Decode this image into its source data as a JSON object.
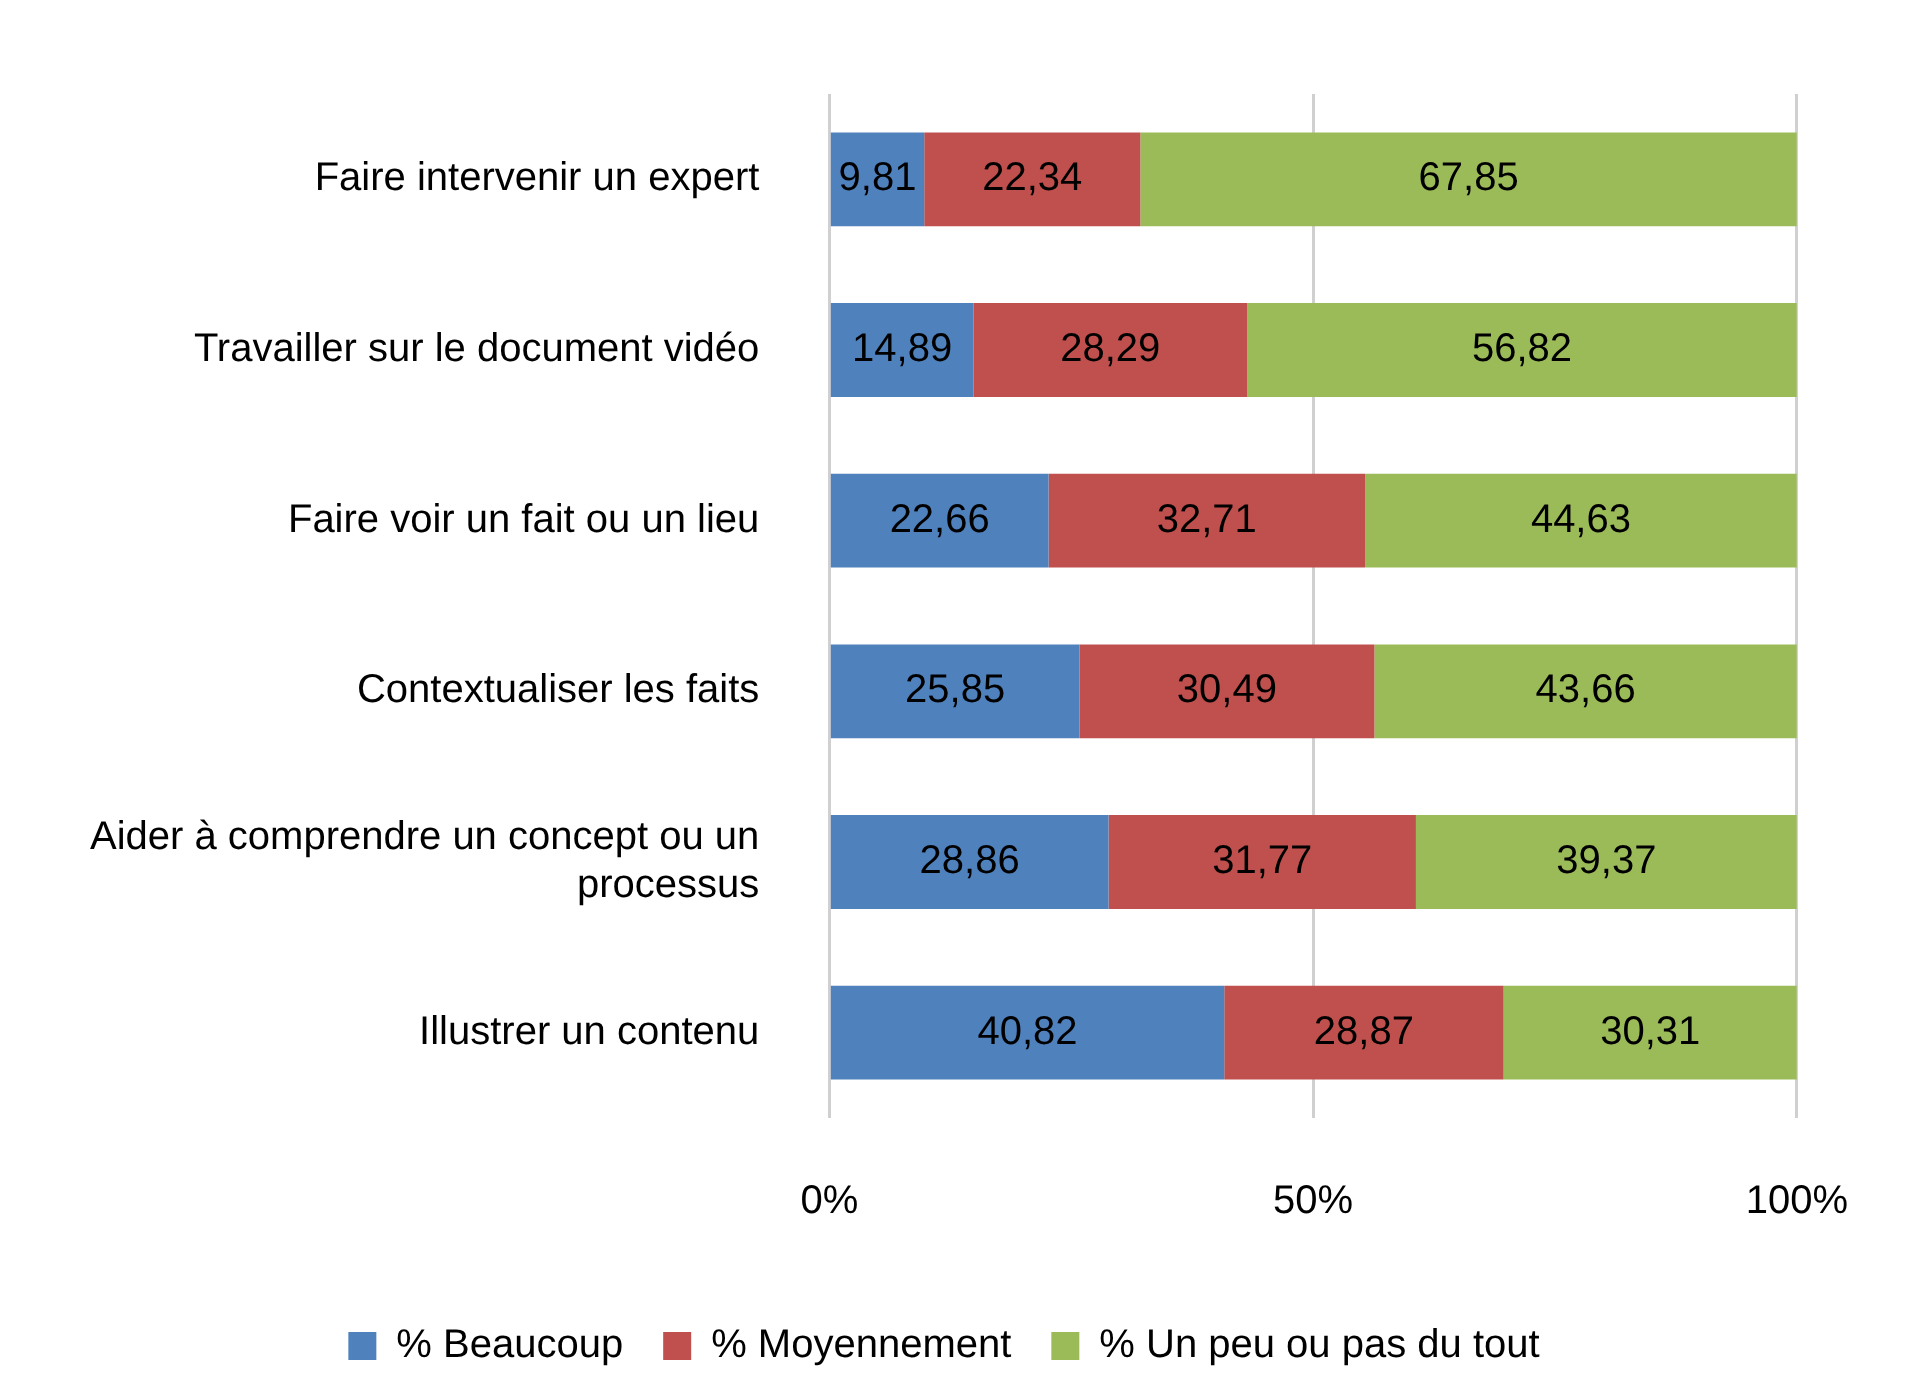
{
  "chart_data": {
    "type": "bar",
    "orientation": "horizontal",
    "stacked": true,
    "categories": [
      "Faire intervenir un expert",
      "Travailler sur le document vidéo",
      "Faire voir un fait ou un lieu",
      "Contextualiser les faits",
      "Aider à comprendre un concept ou un processus",
      "Illustrer un contenu"
    ],
    "series": [
      {
        "name": "% Beaucoup",
        "color": "#4f81bd",
        "values": [
          9.81,
          14.89,
          22.66,
          25.85,
          28.86,
          40.82
        ],
        "value_labels": [
          "9,81",
          "14,89",
          "22,66",
          "25,85",
          "28,86",
          "40,82"
        ]
      },
      {
        "name": "% Moyennement",
        "color": "#c0504d",
        "values": [
          22.34,
          28.29,
          32.71,
          30.49,
          31.77,
          28.87
        ],
        "value_labels": [
          "22,34",
          "28,29",
          "32,71",
          "30,49",
          "31,77",
          "28,87"
        ]
      },
      {
        "name": "% Un peu ou pas du tout",
        "color": "#9bbb59",
        "values": [
          67.85,
          56.82,
          44.63,
          43.66,
          39.37,
          30.31
        ],
        "value_labels": [
          "67,85",
          "56,82",
          "44,63",
          "43,66",
          "39,37",
          "30,31"
        ]
      }
    ],
    "xlim": [
      0,
      100
    ],
    "xticks": [
      {
        "value": 0,
        "label": "0%"
      },
      {
        "value": 50,
        "label": "50%"
      },
      {
        "value": 100,
        "label": "100%"
      }
    ],
    "grid": "x",
    "legend": "bottom"
  }
}
